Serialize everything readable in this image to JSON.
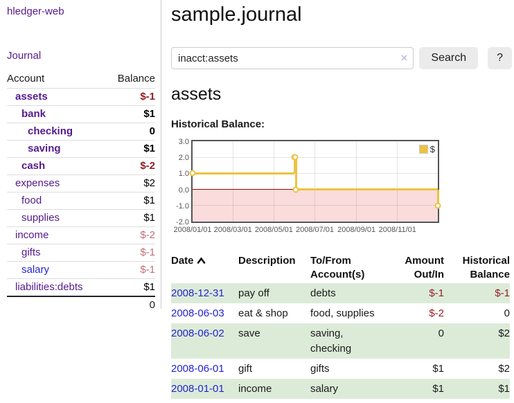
{
  "app": {
    "title": "hledger-web",
    "nav_journal": "Journal"
  },
  "sidebar": {
    "header": {
      "account": "Account",
      "balance": "Balance"
    },
    "accounts": [
      {
        "name": "assets",
        "level": 0,
        "strong": true,
        "link_style": "purple",
        "balance": "$-1",
        "balance_style": "neg-strong"
      },
      {
        "name": "bank",
        "level": 1,
        "strong": true,
        "link_style": "purple",
        "balance": "$1",
        "balance_style": "pos-strong"
      },
      {
        "name": "checking",
        "level": 2,
        "strong": true,
        "link_style": "purple",
        "balance": "0",
        "balance_style": "pos-strong"
      },
      {
        "name": "saving",
        "level": 2,
        "strong": true,
        "link_style": "purple",
        "balance": "$1",
        "balance_style": "pos-strong"
      },
      {
        "name": "cash",
        "level": 1,
        "strong": true,
        "link_style": "purple",
        "balance": "$-2",
        "balance_style": "neg-strong"
      },
      {
        "name": "expenses",
        "level": 0,
        "strong": false,
        "link_style": "purple",
        "balance": "$2",
        "balance_style": "pos"
      },
      {
        "name": "food",
        "level": 1,
        "strong": false,
        "link_style": "purple",
        "balance": "$1",
        "balance_style": "pos"
      },
      {
        "name": "supplies",
        "level": 1,
        "strong": false,
        "link_style": "purple",
        "balance": "$1",
        "balance_style": "pos"
      },
      {
        "name": "income",
        "level": 0,
        "strong": false,
        "link_style": "purple",
        "balance": "$-2",
        "balance_style": "neg-soft"
      },
      {
        "name": "gifts",
        "level": 1,
        "strong": false,
        "link_style": "purple",
        "balance": "$-1",
        "balance_style": "neg-soft"
      },
      {
        "name": "salary",
        "level": 1,
        "strong": false,
        "link_style": "blue",
        "balance": "$-1",
        "balance_style": "neg-soft"
      },
      {
        "name": "liabilities:debts",
        "level": 0,
        "strong": false,
        "link_style": "purple",
        "balance": "$1",
        "balance_style": "pos"
      }
    ],
    "total": "0"
  },
  "main": {
    "title": "sample.journal",
    "search": {
      "value": "inacct:assets",
      "clear_icon": "×",
      "button": "Search",
      "help_button": "?"
    },
    "account_heading": "assets",
    "chart_label": "Historical Balance:"
  },
  "chart_data": {
    "type": "line",
    "step": true,
    "title": "Historical Balance",
    "series": [
      {
        "name": "$",
        "color": "#edc240",
        "points": [
          [
            "2008-01-01",
            1
          ],
          [
            "2008-06-01",
            2
          ],
          [
            "2008-06-02",
            2
          ],
          [
            "2008-06-03",
            0
          ],
          [
            "2008-12-31",
            -1
          ]
        ]
      }
    ],
    "x_range": [
      "2008-01-01",
      "2008-12-31"
    ],
    "x_ticks": [
      "2008/01/01",
      "2008/03/01",
      "2008/05/01",
      "2008/07/01",
      "2008/09/01",
      "2008/11/01"
    ],
    "y_ticks": [
      3,
      2,
      1,
      0,
      -1,
      -2
    ],
    "ylim": [
      -2,
      3
    ],
    "grid": true,
    "negative_region_color": "#fbdcdc",
    "zero_line_color": "#a40000",
    "legend": {
      "label": "$",
      "position": "top-right"
    }
  },
  "register": {
    "headers": {
      "date": "Date",
      "description": "Description",
      "account": "To/From Account(s)",
      "amount": "Amount Out/In",
      "balance": "Historical Balance"
    },
    "rows": [
      {
        "date": "2008-12-31",
        "description": "pay off",
        "accounts": "debts",
        "amount": "$-1",
        "amount_neg": true,
        "balance": "$-1",
        "balance_neg": true,
        "shaded": true
      },
      {
        "date": "2008-06-03",
        "description": "eat & shop",
        "accounts": "food, supplies",
        "amount": "$-2",
        "amount_neg": true,
        "balance": "0",
        "balance_neg": false,
        "shaded": false
      },
      {
        "date": "2008-06-02",
        "description": "save",
        "accounts": "saving, checking",
        "amount": "0",
        "amount_neg": false,
        "balance": "$2",
        "balance_neg": false,
        "shaded": true
      },
      {
        "date": "2008-06-01",
        "description": "gift",
        "accounts": "gifts",
        "amount": "$1",
        "amount_neg": false,
        "balance": "$2",
        "balance_neg": false,
        "shaded": false
      },
      {
        "date": "2008-01-01",
        "description": "income",
        "accounts": "salary",
        "amount": "$1",
        "amount_neg": false,
        "balance": "$1",
        "balance_neg": false,
        "shaded": true
      }
    ]
  },
  "colors": {
    "link_purple": "#551a8b",
    "link_blue": "#2323d3",
    "negative_strong": "#8e1f25",
    "negative_soft": "#c0707a",
    "register_negative": "#941f28",
    "shaded_row_green": "#dcebd8",
    "series_gold": "#edc240",
    "negative_region_pink": "#fbdcdc",
    "zero_line_red": "#a40000"
  }
}
